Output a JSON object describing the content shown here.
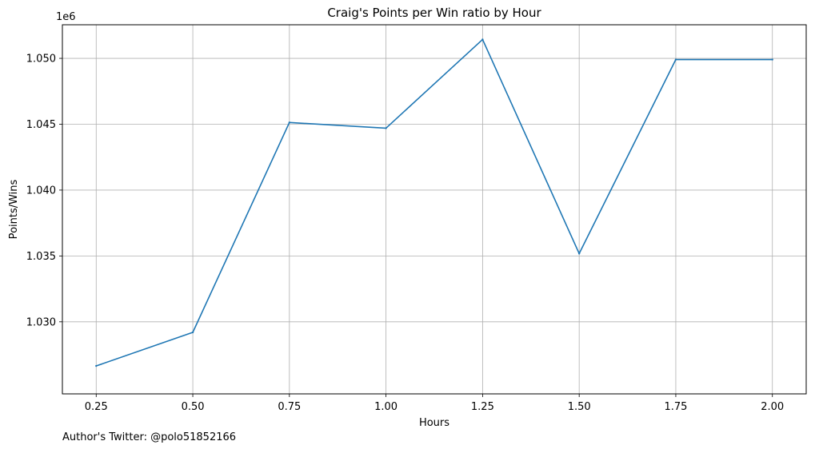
{
  "chart_data": {
    "type": "line",
    "title": "Craig's Points per Win ratio by Hour",
    "xlabel": "Hours",
    "ylabel": "Points/Wins",
    "y_offset_label": "1e6",
    "x": [
      0.25,
      0.5,
      0.75,
      1.0,
      1.25,
      1.5,
      1.75,
      2.0
    ],
    "series": [
      {
        "values": [
          1.02665,
          1.0292,
          1.04513,
          1.0447,
          1.05143,
          1.03518,
          1.04991,
          1.04991
        ],
        "color": "#1f77b4"
      }
    ],
    "xlim": [
      0.1625,
      2.0875
    ],
    "ylim": [
      1.02453,
      1.05255
    ],
    "x_ticks": [
      0.25,
      0.5,
      0.75,
      1.0,
      1.25,
      1.5,
      1.75,
      2.0
    ],
    "x_tick_labels": [
      "0.25",
      "0.50",
      "0.75",
      "1.00",
      "1.25",
      "1.50",
      "1.75",
      "2.00"
    ],
    "y_ticks": [
      1.03,
      1.035,
      1.04,
      1.045,
      1.05
    ],
    "y_tick_labels": [
      "1.030",
      "1.035",
      "1.040",
      "1.045",
      "1.050"
    ],
    "grid": true,
    "legend": "none"
  },
  "footer": {
    "text": "Author's Twitter: @polo51852166"
  }
}
